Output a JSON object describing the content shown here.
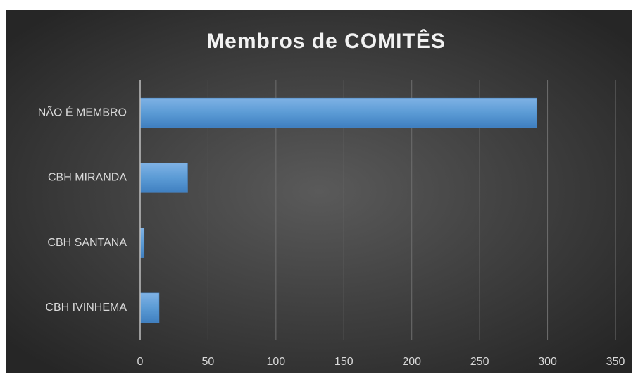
{
  "chart_data": {
    "type": "bar",
    "orientation": "horizontal",
    "title": "Membros de COMITÊS",
    "categories": [
      "NÃO É MEMBRO",
      "CBH MIRANDA",
      "CBH SANTANA",
      "CBH IVINHEMA"
    ],
    "values": [
      292,
      35,
      3,
      14
    ],
    "color": "#5b9bd5",
    "xlim": [
      0,
      350
    ],
    "xticks": [
      0,
      50,
      100,
      150,
      200,
      250,
      300,
      350
    ],
    "grid": true
  }
}
